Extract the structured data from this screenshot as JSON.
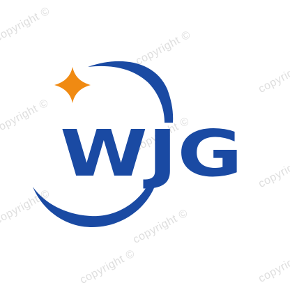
{
  "logo": {
    "text": "WJG",
    "primary_color": "#1a4aa3",
    "accent_color": "#f08a12"
  },
  "watermark": {
    "text": "copyright ©"
  },
  "icons": {
    "star": "four-point-star-icon",
    "orbit": "orbit-swoosh-icon"
  }
}
